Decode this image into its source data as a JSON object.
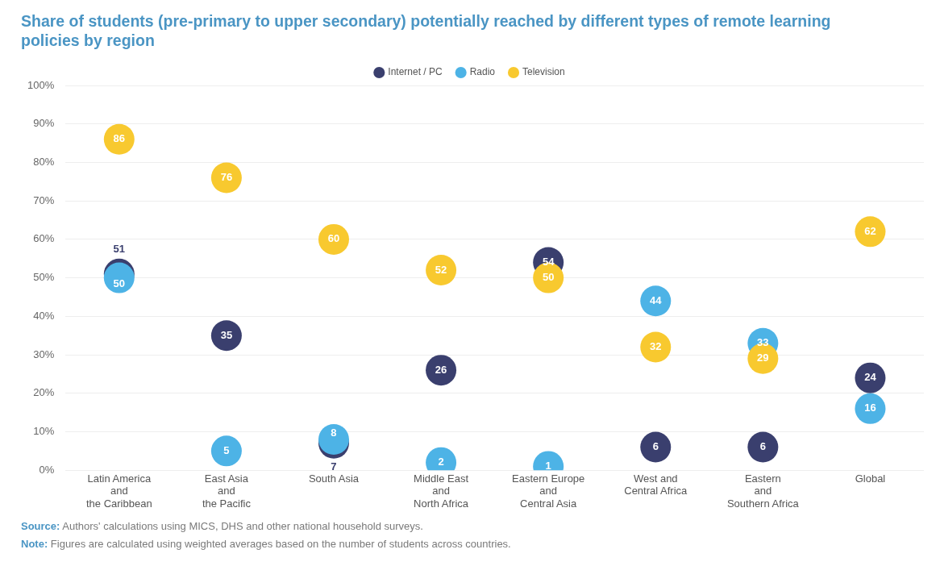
{
  "chart_data": {
    "type": "scatter",
    "title": "Share of students (pre-primary to upper secondary) potentially reached by different types of remote learning policies by region",
    "categories": [
      "Latin America\nand\nthe Caribbean",
      "East Asia\nand\nthe Pacific",
      "South Asia",
      "Middle East\nand\nNorth Africa",
      "Eastern Europe\nand\nCentral Asia",
      "West and\nCentral Africa",
      "Eastern\nand\nSouthern Africa",
      "Global"
    ],
    "series": [
      {
        "name": "Internet / PC",
        "color": "#3a3f6e",
        "values": [
          51,
          35,
          7,
          26,
          54,
          6,
          6,
          24
        ]
      },
      {
        "name": "Radio",
        "color": "#4db3e6",
        "values": [
          50,
          5,
          8,
          2,
          1,
          44,
          33,
          16
        ]
      },
      {
        "name": "Television",
        "color": "#f8c92f",
        "values": [
          86,
          76,
          60,
          52,
          50,
          32,
          29,
          62
        ]
      }
    ],
    "ylim": [
      0,
      100
    ],
    "yticks": [
      {
        "value": 0,
        "label": "0%"
      },
      {
        "value": 10,
        "label": "10%"
      },
      {
        "value": 20,
        "label": "20%"
      },
      {
        "value": 30,
        "label": "30%"
      },
      {
        "value": 40,
        "label": "40%"
      },
      {
        "value": 50,
        "label": "50%"
      },
      {
        "value": 60,
        "label": "60%"
      },
      {
        "value": 70,
        "label": "70%"
      },
      {
        "value": 80,
        "label": "80%"
      },
      {
        "value": 90,
        "label": "90%"
      },
      {
        "value": 100,
        "label": "100%"
      }
    ],
    "grid": "y",
    "legend": "top",
    "marker": "circle",
    "data_labels": true,
    "annotations": [
      "Source: Authors' calculations using MICS, DHS and other national household surveys.",
      "Note: Figures are calculated using weighted averages based on the number of students across countries."
    ]
  }
}
